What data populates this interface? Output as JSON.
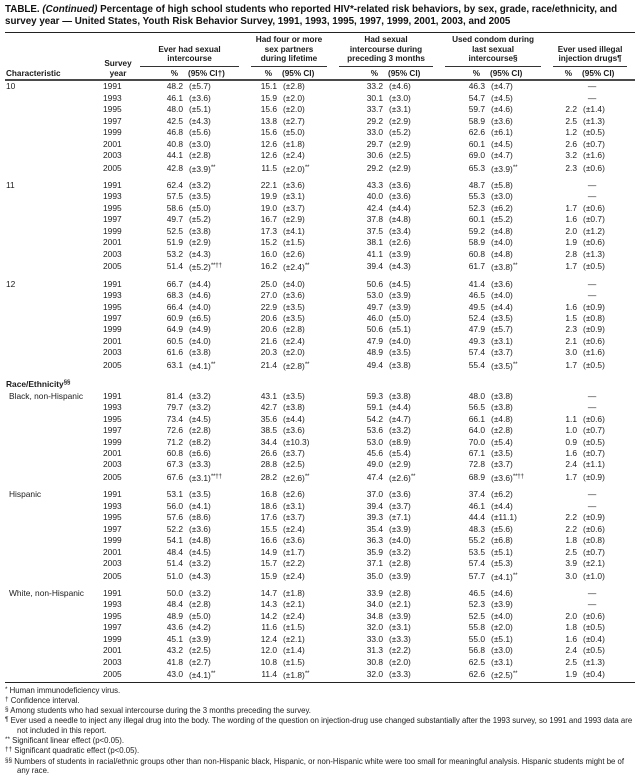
{
  "title": {
    "label": "TABLE.",
    "continued": "(Continued)",
    "text": "Percentage of high school students who reported HIV*-related risk behaviors, by sex, grade, race/ethnicity, and survey year — United States, Youth Risk Behavior Survey, 1991, 1993, 1995, 1997, 1999, 2001, 2003, and 2005"
  },
  "header": {
    "characteristic": "Characteristic",
    "survey_year": "Survey year",
    "groups": [
      {
        "label": "Ever had sexual intercourse",
        "pct": "%",
        "ci": "(95% CI†)"
      },
      {
        "label": "Had four or more sex partners during lifetime",
        "pct": "%",
        "ci": "(95% CI)"
      },
      {
        "label": "Had sexual intercourse during preceding 3 months",
        "pct": "%",
        "ci": "(95% CI)"
      },
      {
        "label": "Used condom during last sexual intercourse§",
        "pct": "%",
        "ci": "(95% CI)"
      },
      {
        "label": "Ever used illegal injection drugs¶",
        "pct": "%",
        "ci": "(95% CI)"
      }
    ]
  },
  "sections": [
    {
      "label": "10",
      "type": "data",
      "gap_before": false,
      "indent": false,
      "rows": [
        [
          "1991",
          "48.2",
          "(±5.7)",
          "15.1",
          "(±2.8)",
          "33.2",
          "(±4.6)",
          "46.3",
          "(±4.7)",
          "—",
          ""
        ],
        [
          "1993",
          "46.1",
          "(±3.6)",
          "15.9",
          "(±2.0)",
          "30.1",
          "(±3.0)",
          "54.7",
          "(±4.5)",
          "—",
          ""
        ],
        [
          "1995",
          "48.0",
          "(±5.1)",
          "15.6",
          "(±2.0)",
          "33.7",
          "(±3.1)",
          "59.7",
          "(±4.6)",
          "2.2",
          "(±1.4)"
        ],
        [
          "1997",
          "42.5",
          "(±4.3)",
          "13.8",
          "(±2.7)",
          "29.2",
          "(±2.9)",
          "58.9",
          "(±3.6)",
          "2.5",
          "(±1.3)"
        ],
        [
          "1999",
          "46.8",
          "(±5.6)",
          "15.6",
          "(±5.0)",
          "33.0",
          "(±5.2)",
          "62.6",
          "(±6.1)",
          "1.2",
          "(±0.5)"
        ],
        [
          "2001",
          "40.8",
          "(±3.0)",
          "12.6",
          "(±1.8)",
          "29.7",
          "(±2.9)",
          "60.1",
          "(±4.5)",
          "2.6",
          "(±0.7)"
        ],
        [
          "2003",
          "44.1",
          "(±2.8)",
          "12.6",
          "(±2.4)",
          "30.6",
          "(±2.5)",
          "69.0",
          "(±4.7)",
          "3.2",
          "(±1.6)"
        ],
        [
          "2005",
          "42.8",
          "(±3.9)**",
          "11.5",
          "(±2.0)**",
          "29.2",
          "(±2.9)",
          "65.3",
          "(±3.9)**",
          "2.3",
          "(±0.6)"
        ]
      ]
    },
    {
      "label": "11",
      "type": "data",
      "gap_before": true,
      "indent": false,
      "rows": [
        [
          "1991",
          "62.4",
          "(±3.2)",
          "22.1",
          "(±3.6)",
          "43.3",
          "(±3.6)",
          "48.7",
          "(±5.8)",
          "—",
          ""
        ],
        [
          "1993",
          "57.5",
          "(±3.5)",
          "19.9",
          "(±3.1)",
          "40.0",
          "(±3.6)",
          "55.3",
          "(±3.0)",
          "—",
          ""
        ],
        [
          "1995",
          "58.6",
          "(±5.0)",
          "19.0",
          "(±3.7)",
          "42.4",
          "(±4.4)",
          "52.3",
          "(±6.2)",
          "1.7",
          "(±0.6)"
        ],
        [
          "1997",
          "49.7",
          "(±5.2)",
          "16.7",
          "(±2.9)",
          "37.8",
          "(±4.8)",
          "60.1",
          "(±5.2)",
          "1.6",
          "(±0.7)"
        ],
        [
          "1999",
          "52.5",
          "(±3.8)",
          "17.3",
          "(±4.1)",
          "37.5",
          "(±3.4)",
          "59.2",
          "(±4.8)",
          "2.0",
          "(±1.2)"
        ],
        [
          "2001",
          "51.9",
          "(±2.9)",
          "15.2",
          "(±1.5)",
          "38.1",
          "(±2.6)",
          "58.9",
          "(±4.0)",
          "1.9",
          "(±0.6)"
        ],
        [
          "2003",
          "53.2",
          "(±4.3)",
          "16.0",
          "(±2.6)",
          "41.1",
          "(±3.9)",
          "60.8",
          "(±4.8)",
          "2.8",
          "(±1.3)"
        ],
        [
          "2005",
          "51.4",
          "(±5.2)**††",
          "16.2",
          "(±2.4)**",
          "39.4",
          "(±4.3)",
          "61.7",
          "(±3.8)**",
          "1.7",
          "(±0.5)"
        ]
      ]
    },
    {
      "label": "12",
      "type": "data",
      "gap_before": true,
      "indent": false,
      "rows": [
        [
          "1991",
          "66.7",
          "(±4.4)",
          "25.0",
          "(±4.0)",
          "50.6",
          "(±4.5)",
          "41.4",
          "(±3.6)",
          "—",
          ""
        ],
        [
          "1993",
          "68.3",
          "(±4.6)",
          "27.0",
          "(±3.6)",
          "53.0",
          "(±3.9)",
          "46.5",
          "(±4.0)",
          "—",
          ""
        ],
        [
          "1995",
          "66.4",
          "(±4.0)",
          "22.9",
          "(±3.5)",
          "49.7",
          "(±3.9)",
          "49.5",
          "(±4.4)",
          "1.6",
          "(±0.9)"
        ],
        [
          "1997",
          "60.9",
          "(±6.5)",
          "20.6",
          "(±3.5)",
          "46.0",
          "(±5.0)",
          "52.4",
          "(±3.5)",
          "1.5",
          "(±0.8)"
        ],
        [
          "1999",
          "64.9",
          "(±4.9)",
          "20.6",
          "(±2.8)",
          "50.6",
          "(±5.1)",
          "47.9",
          "(±5.7)",
          "2.3",
          "(±0.9)"
        ],
        [
          "2001",
          "60.5",
          "(±4.0)",
          "21.6",
          "(±2.4)",
          "47.9",
          "(±4.0)",
          "49.3",
          "(±3.1)",
          "2.1",
          "(±0.6)"
        ],
        [
          "2003",
          "61.6",
          "(±3.8)",
          "20.3",
          "(±2.0)",
          "48.9",
          "(±3.5)",
          "57.4",
          "(±3.7)",
          "3.0",
          "(±1.6)"
        ],
        [
          "2005",
          "63.1",
          "(±4.1)**",
          "21.4",
          "(±2.8)**",
          "49.4",
          "(±3.8)",
          "55.4",
          "(±3.5)**",
          "1.7",
          "(±0.5)"
        ]
      ]
    },
    {
      "label": "Race/Ethnicity§§",
      "type": "header",
      "gap_before": true
    },
    {
      "label": "Black, non-Hispanic",
      "type": "data",
      "gap_before": false,
      "indent": true,
      "rows": [
        [
          "1991",
          "81.4",
          "(±3.2)",
          "43.1",
          "(±3.5)",
          "59.3",
          "(±3.8)",
          "48.0",
          "(±3.8)",
          "—",
          ""
        ],
        [
          "1993",
          "79.7",
          "(±3.2)",
          "42.7",
          "(±3.8)",
          "59.1",
          "(±4.4)",
          "56.5",
          "(±3.8)",
          "—",
          ""
        ],
        [
          "1995",
          "73.4",
          "(±4.5)",
          "35.6",
          "(±4.4)",
          "54.2",
          "(±4.7)",
          "66.1",
          "(±4.8)",
          "1.1",
          "(±0.6)"
        ],
        [
          "1997",
          "72.6",
          "(±2.8)",
          "38.5",
          "(±3.6)",
          "53.6",
          "(±3.2)",
          "64.0",
          "(±2.8)",
          "1.0",
          "(±0.7)"
        ],
        [
          "1999",
          "71.2",
          "(±8.2)",
          "34.4",
          "(±10.3)",
          "53.0",
          "(±8.9)",
          "70.0",
          "(±5.4)",
          "0.9",
          "(±0.5)"
        ],
        [
          "2001",
          "60.8",
          "(±6.6)",
          "26.6",
          "(±3.7)",
          "45.6",
          "(±5.4)",
          "67.1",
          "(±3.5)",
          "1.6",
          "(±0.7)"
        ],
        [
          "2003",
          "67.3",
          "(±3.3)",
          "28.8",
          "(±2.5)",
          "49.0",
          "(±2.9)",
          "72.8",
          "(±3.7)",
          "2.4",
          "(±1.1)"
        ],
        [
          "2005",
          "67.6",
          "(±3.1)**††",
          "28.2",
          "(±2.6)**",
          "47.4",
          "(±2.6)**",
          "68.9",
          "(±3.6)**††",
          "1.7",
          "(±0.9)"
        ]
      ]
    },
    {
      "label": "Hispanic",
      "type": "data",
      "gap_before": true,
      "indent": true,
      "rows": [
        [
          "1991",
          "53.1",
          "(±3.5)",
          "16.8",
          "(±2.6)",
          "37.0",
          "(±3.6)",
          "37.4",
          "(±6.2)",
          "—",
          ""
        ],
        [
          "1993",
          "56.0",
          "(±4.1)",
          "18.6",
          "(±3.1)",
          "39.4",
          "(±3.7)",
          "46.1",
          "(±4.4)",
          "—",
          ""
        ],
        [
          "1995",
          "57.6",
          "(±8.6)",
          "17.6",
          "(±3.7)",
          "39.3",
          "(±7.1)",
          "44.4",
          "(±11.1)",
          "2.2",
          "(±0.9)"
        ],
        [
          "1997",
          "52.2",
          "(±3.6)",
          "15.5",
          "(±2.4)",
          "35.4",
          "(±3.9)",
          "48.3",
          "(±5.6)",
          "2.2",
          "(±0.6)"
        ],
        [
          "1999",
          "54.1",
          "(±4.8)",
          "16.6",
          "(±3.6)",
          "36.3",
          "(±4.0)",
          "55.2",
          "(±6.8)",
          "1.8",
          "(±0.8)"
        ],
        [
          "2001",
          "48.4",
          "(±4.5)",
          "14.9",
          "(±1.7)",
          "35.9",
          "(±3.2)",
          "53.5",
          "(±5.1)",
          "2.5",
          "(±0.7)"
        ],
        [
          "2003",
          "51.4",
          "(±3.2)",
          "15.7",
          "(±2.2)",
          "37.1",
          "(±2.8)",
          "57.4",
          "(±5.3)",
          "3.9",
          "(±2.1)"
        ],
        [
          "2005",
          "51.0",
          "(±4.3)",
          "15.9",
          "(±2.4)",
          "35.0",
          "(±3.9)",
          "57.7",
          "(±4.1)**",
          "3.0",
          "(±1.0)"
        ]
      ]
    },
    {
      "label": "White, non-Hispanic",
      "type": "data",
      "gap_before": true,
      "indent": true,
      "rows": [
        [
          "1991",
          "50.0",
          "(±3.2)",
          "14.7",
          "(±1.8)",
          "33.9",
          "(±2.8)",
          "46.5",
          "(±4.6)",
          "—",
          ""
        ],
        [
          "1993",
          "48.4",
          "(±2.8)",
          "14.3",
          "(±2.1)",
          "34.0",
          "(±2.1)",
          "52.3",
          "(±3.9)",
          "—",
          ""
        ],
        [
          "1995",
          "48.9",
          "(±5.0)",
          "14.2",
          "(±2.4)",
          "34.8",
          "(±3.9)",
          "52.5",
          "(±4.0)",
          "2.0",
          "(±0.6)"
        ],
        [
          "1997",
          "43.6",
          "(±4.2)",
          "11.6",
          "(±1.5)",
          "32.0",
          "(±3.1)",
          "55.8",
          "(±2.0)",
          "1.8",
          "(±0.5)"
        ],
        [
          "1999",
          "45.1",
          "(±3.9)",
          "12.4",
          "(±2.1)",
          "33.0",
          "(±3.3)",
          "55.0",
          "(±5.1)",
          "1.6",
          "(±0.4)"
        ],
        [
          "2001",
          "43.2",
          "(±2.5)",
          "12.0",
          "(±1.4)",
          "31.3",
          "(±2.2)",
          "56.8",
          "(±3.0)",
          "2.4",
          "(±0.5)"
        ],
        [
          "2003",
          "41.8",
          "(±2.7)",
          "10.8",
          "(±1.5)",
          "30.8",
          "(±2.0)",
          "62.5",
          "(±3.1)",
          "2.5",
          "(±1.3)"
        ],
        [
          "2005",
          "43.0",
          "(±4.1)**",
          "11.4",
          "(±1.8)**",
          "32.0",
          "(±3.3)",
          "62.6",
          "(±2.5)**",
          "1.9",
          "(±0.4)"
        ]
      ]
    }
  ],
  "footnotes": [
    {
      "marker": "*",
      "text": "Human immunodeficiency virus."
    },
    {
      "marker": "†",
      "text": "Confidence interval."
    },
    {
      "marker": "§",
      "text": "Among students who had sexual intercourse during the 3 months preceding the survey."
    },
    {
      "marker": "¶",
      "text": "Ever used a needle to inject any illegal drug into the body. The wording of the question on injection-drug use changed substantially after the 1993 survey, so 1991 and 1993 data are not included in this report."
    },
    {
      "marker": "**",
      "text": "Significant linear effect (p<0.05)."
    },
    {
      "marker": "††",
      "text": "Significant quadratic effect (p<0.05)."
    },
    {
      "marker": "§§",
      "text": "Numbers of students in racial/ethnic groups other than non-Hispanic black, Hispanic, or non-Hispanic white were too small for meaningful analysis. Hispanic students might be of any race."
    }
  ]
}
